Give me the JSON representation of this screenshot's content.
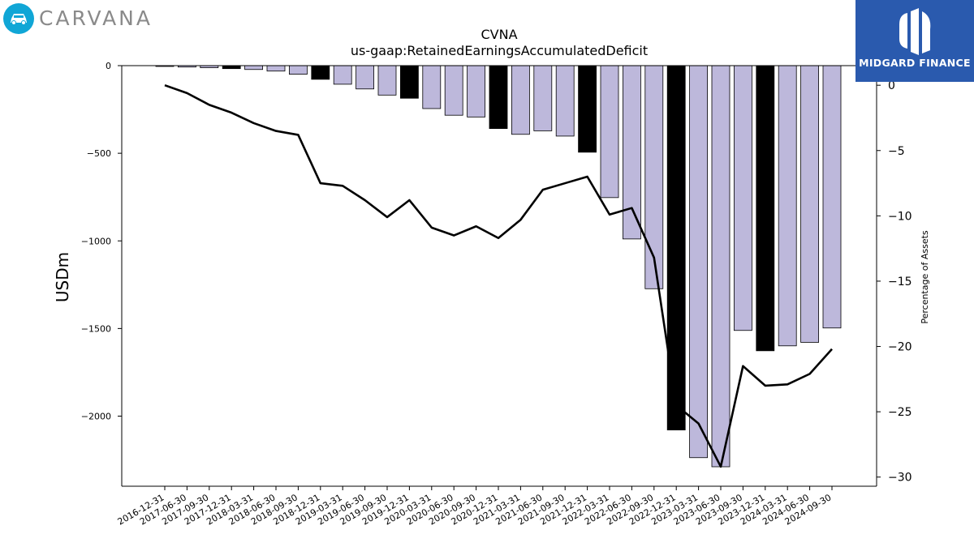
{
  "brand_left": {
    "name": "CARVANA",
    "icon": "car-icon"
  },
  "brand_right": {
    "name": "MIDGARD FINANCE",
    "icon": "midgard-mark-icon"
  },
  "colors": {
    "bar_default": "#bdb8db",
    "bar_highlight": "#000000",
    "line": "#000000",
    "logo_left": "#10a6d6",
    "logo_right": "#2a5aae"
  },
  "chart_data": {
    "type": "bar",
    "title": "CVNA",
    "subtitle": "us-gaap:RetainedEarningsAccumulatedDeficit",
    "ylabel": "USDm",
    "y2label": "Percentage of Assets",
    "ylim": [
      -2400,
      0
    ],
    "y2lim": [
      -30.7,
      1.5
    ],
    "yticks": [
      0,
      -500,
      -1000,
      -1500,
      -2000
    ],
    "y2ticks": [
      0,
      -5,
      -10,
      -15,
      -20,
      -25,
      -30
    ],
    "grid": false,
    "categories": [
      "2016-12-31",
      "2017-06-30",
      "2017-09-30",
      "2017-12-31",
      "2018-03-31",
      "2018-06-30",
      "2018-09-30",
      "2018-12-31",
      "2019-03-31",
      "2019-06-30",
      "2019-09-30",
      "2019-12-31",
      "2020-03-31",
      "2020-06-30",
      "2020-09-30",
      "2020-12-31",
      "2021-03-31",
      "2021-06-30",
      "2021-09-30",
      "2021-12-31",
      "2022-03-31",
      "2022-06-30",
      "2022-09-30",
      "2022-12-31",
      "2023-03-31",
      "2023-06-30",
      "2023-09-30",
      "2023-12-31",
      "2024-03-31",
      "2024-06-30",
      "2024-09-30"
    ],
    "series": [
      {
        "kind": "bar",
        "values": [
          -3,
          -8,
          -12,
          -17,
          -22,
          -31,
          -49,
          -78,
          -106,
          -133,
          -168,
          -186,
          -245,
          -283,
          -293,
          -359,
          -392,
          -372,
          -402,
          -494,
          -753,
          -989,
          -1273,
          -2079,
          -2237,
          -2289,
          -1511,
          -1627,
          -1599,
          -1579,
          -1497
        ],
        "highlight": [
          false,
          false,
          false,
          true,
          false,
          false,
          false,
          true,
          false,
          false,
          false,
          true,
          false,
          false,
          false,
          true,
          false,
          false,
          false,
          true,
          false,
          false,
          false,
          true,
          false,
          false,
          false,
          true,
          false,
          false,
          false
        ]
      },
      {
        "kind": "line",
        "axis": "secondary",
        "values": [
          0.0,
          -0.6,
          -1.5,
          -2.1,
          -2.9,
          -3.5,
          -3.8,
          -7.5,
          -7.7,
          -8.8,
          -10.1,
          -8.8,
          -10.9,
          -11.5,
          -10.8,
          -11.7,
          -10.3,
          -8.0,
          -7.5,
          -7.0,
          -9.9,
          -9.4,
          -13.2,
          -24.5,
          -25.9,
          -29.2,
          -21.5,
          -23.0,
          -22.9,
          -22.1,
          -20.2
        ]
      }
    ]
  }
}
